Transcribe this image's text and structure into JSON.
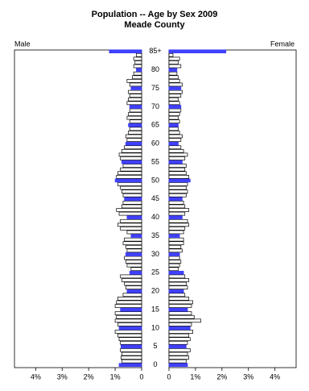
{
  "chart_data": {
    "type": "pyramid",
    "title": "Population -- Age by Sex 2009",
    "subtitle": "Meade County",
    "categories": [
      "0",
      null,
      null,
      null,
      null,
      "5",
      null,
      null,
      null,
      null,
      "10",
      null,
      null,
      null,
      null,
      "15",
      null,
      null,
      null,
      null,
      "20",
      null,
      null,
      null,
      null,
      "25",
      null,
      null,
      null,
      null,
      "30",
      null,
      null,
      null,
      null,
      "35",
      null,
      null,
      null,
      null,
      "40",
      null,
      null,
      null,
      null,
      "45",
      null,
      null,
      null,
      null,
      "50",
      null,
      null,
      null,
      null,
      "55",
      null,
      null,
      null,
      null,
      "60",
      null,
      null,
      null,
      null,
      "65",
      null,
      null,
      null,
      null,
      "70",
      null,
      null,
      null,
      null,
      "75",
      null,
      null,
      null,
      null,
      "80",
      null,
      null,
      null,
      null,
      "85+"
    ],
    "series": [
      {
        "name": "Male",
        "color": "#ffffff",
        "values": [
          0.85,
          0.75,
          0.78,
          0.75,
          0.8,
          0.78,
          0.8,
          0.85,
          0.9,
          1.0,
          0.85,
          0.9,
          1.0,
          0.95,
          1.0,
          0.8,
          1.0,
          0.95,
          0.9,
          0.7,
          0.55,
          0.6,
          0.65,
          0.75,
          0.8,
          0.45,
          0.4,
          0.55,
          0.6,
          0.65,
          0.6,
          0.55,
          0.6,
          0.7,
          0.65,
          0.4,
          0.55,
          0.8,
          0.9,
          0.8,
          0.55,
          0.85,
          0.95,
          0.75,
          0.7,
          0.65,
          0.7,
          0.75,
          0.8,
          0.9,
          1.0,
          0.95,
          0.9,
          0.8,
          0.7,
          0.75,
          0.8,
          0.85,
          0.75,
          0.65,
          0.6,
          0.55,
          0.6,
          0.5,
          0.45,
          0.5,
          0.45,
          0.55,
          0.5,
          0.45,
          0.45,
          0.55,
          0.5,
          0.45,
          0.5,
          0.4,
          0.45,
          0.55,
          0.35,
          0.3,
          0.2,
          0.3,
          0.25,
          0.3,
          0.2,
          1.22
        ]
      },
      {
        "name": "Female",
        "color": "#ffffff",
        "values": [
          0.7,
          0.65,
          0.75,
          0.7,
          0.8,
          0.65,
          0.7,
          0.8,
          0.75,
          0.9,
          0.8,
          0.85,
          1.2,
          0.95,
          0.85,
          0.7,
          0.85,
          0.9,
          0.75,
          0.6,
          0.55,
          0.7,
          0.65,
          0.75,
          0.6,
          0.55,
          0.35,
          0.4,
          0.45,
          0.4,
          0.4,
          0.5,
          0.45,
          0.55,
          0.55,
          0.4,
          0.55,
          0.6,
          0.75,
          0.7,
          0.5,
          0.6,
          0.75,
          0.6,
          0.55,
          0.5,
          0.65,
          0.7,
          0.65,
          0.7,
          0.8,
          0.75,
          0.65,
          0.6,
          0.65,
          0.5,
          0.6,
          0.7,
          0.55,
          0.45,
          0.35,
          0.45,
          0.5,
          0.4,
          0.35,
          0.35,
          0.4,
          0.35,
          0.4,
          0.45,
          0.45,
          0.4,
          0.35,
          0.45,
          0.5,
          0.45,
          0.5,
          0.4,
          0.35,
          0.3,
          0.3,
          0.45,
          0.35,
          0.4,
          0.15,
          2.15
        ]
      }
    ],
    "highlight_color": "#4040ff",
    "xlim": [
      0,
      4.8
    ],
    "xticks": [
      {
        "value": 4,
        "label": "4%"
      },
      {
        "value": 3,
        "label": "3%"
      },
      {
        "value": 2,
        "label": "2%"
      },
      {
        "value": 1,
        "label": "1%"
      },
      0
    ]
  }
}
